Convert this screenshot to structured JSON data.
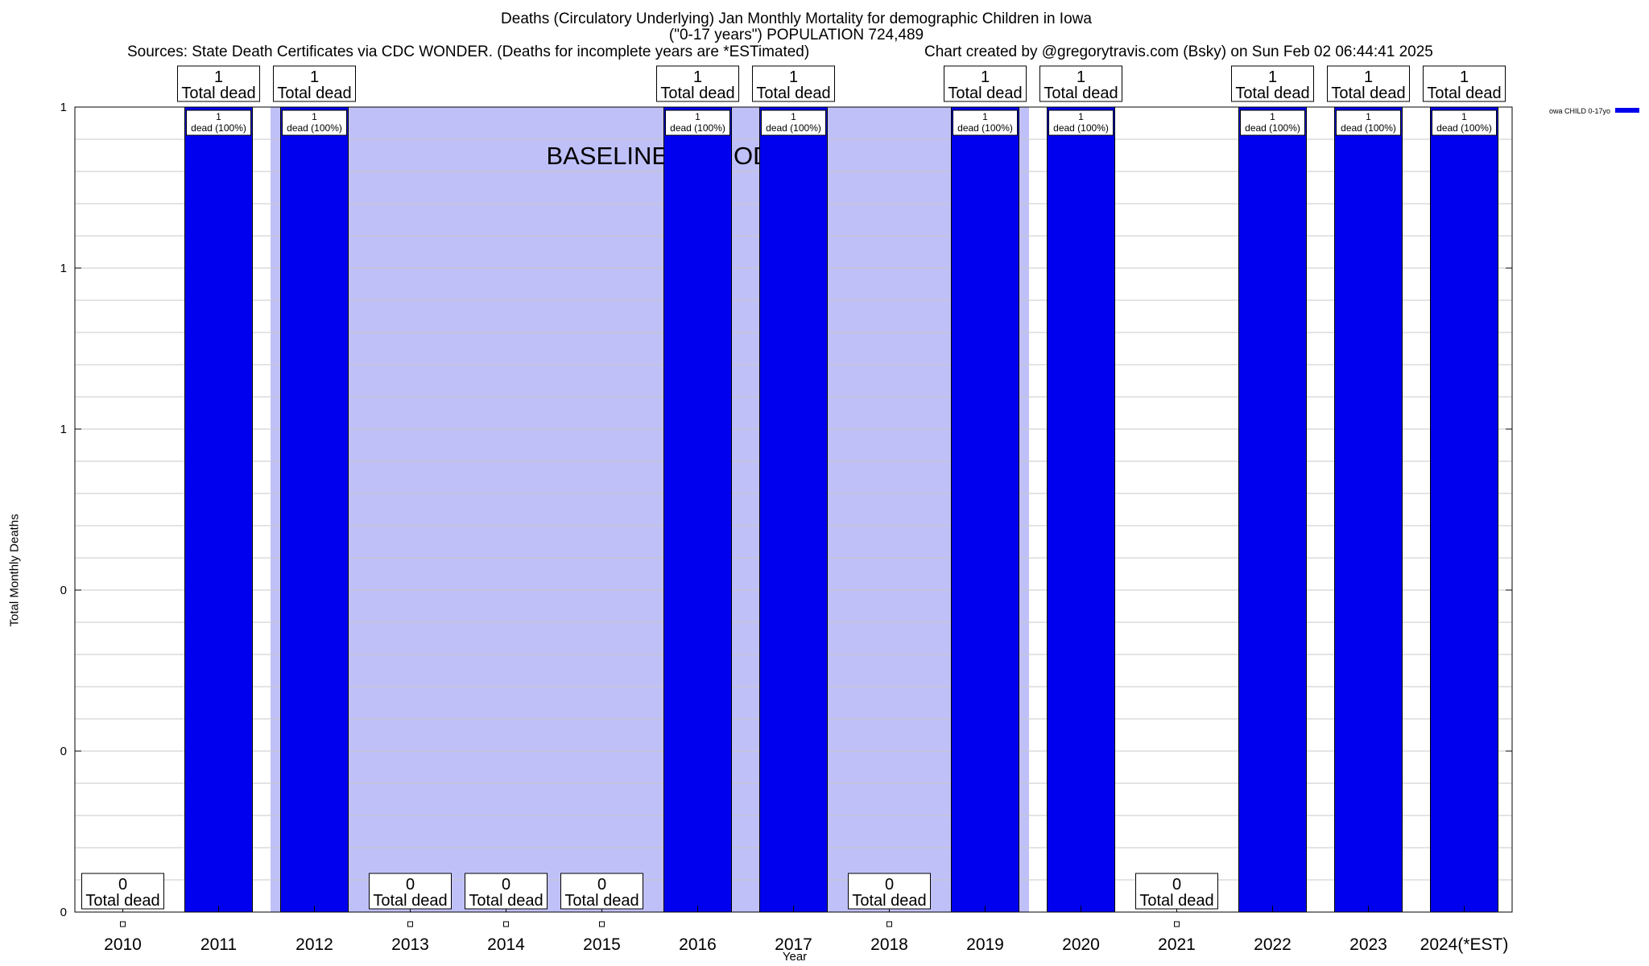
{
  "title": {
    "line1": "Deaths (Circulatory Underlying) Jan Monthly Mortality for demographic Children in Iowa",
    "line2": "(\"0-17 years\") POPULATION 724,489",
    "sources": "Sources: State Death Certificates via CDC WONDER. (Deaths for incomplete years are *ESTimated)",
    "credit": "Chart created by @gregorytravis.com (Bsky) on Sun Feb 02 06:44:41 2025"
  },
  "colors": {
    "bar": "#0000ee",
    "baseline": "#c0c0f8",
    "grid": "#c8c8c8"
  },
  "chart_data": {
    "type": "bar",
    "title": "Deaths (Circulatory Underlying) Jan Monthly Mortality for demographic Children in Iowa",
    "xlabel": "Year",
    "ylabel": "Total Monthly Deaths",
    "ylim": [
      0,
      1
    ],
    "y_tick_labels": [
      "0",
      "0",
      "0",
      "1",
      "1",
      "1"
    ],
    "grid": true,
    "legend_position": "top-right",
    "categories": [
      "2010",
      "2011",
      "2012",
      "2013",
      "2014",
      "2015",
      "2016",
      "2017",
      "2018",
      "2019",
      "2020",
      "2021",
      "2022",
      "2023",
      "2024(*EST)"
    ],
    "series": [
      {
        "name": "owa CHILD 0-17yo",
        "values": [
          0,
          1,
          1,
          0,
          0,
          0,
          1,
          1,
          0,
          1,
          1,
          0,
          1,
          1,
          1
        ]
      }
    ],
    "total_labels": {
      "count": [
        "0",
        "1",
        "1",
        "0",
        "0",
        "0",
        "1",
        "1",
        "0",
        "1",
        "1",
        "0",
        "1",
        "1",
        "1"
      ],
      "text": "Total dead"
    },
    "inner_labels": {
      "count": [
        "",
        "1",
        "1",
        "",
        "",
        "",
        "1",
        "1",
        "",
        "1",
        "1",
        "",
        "1",
        "1",
        "1"
      ],
      "text": "dead (100%)"
    },
    "baseline_period": {
      "label": "BASELINE PERIOD",
      "from_category": "2012",
      "to_category": "2019"
    }
  }
}
